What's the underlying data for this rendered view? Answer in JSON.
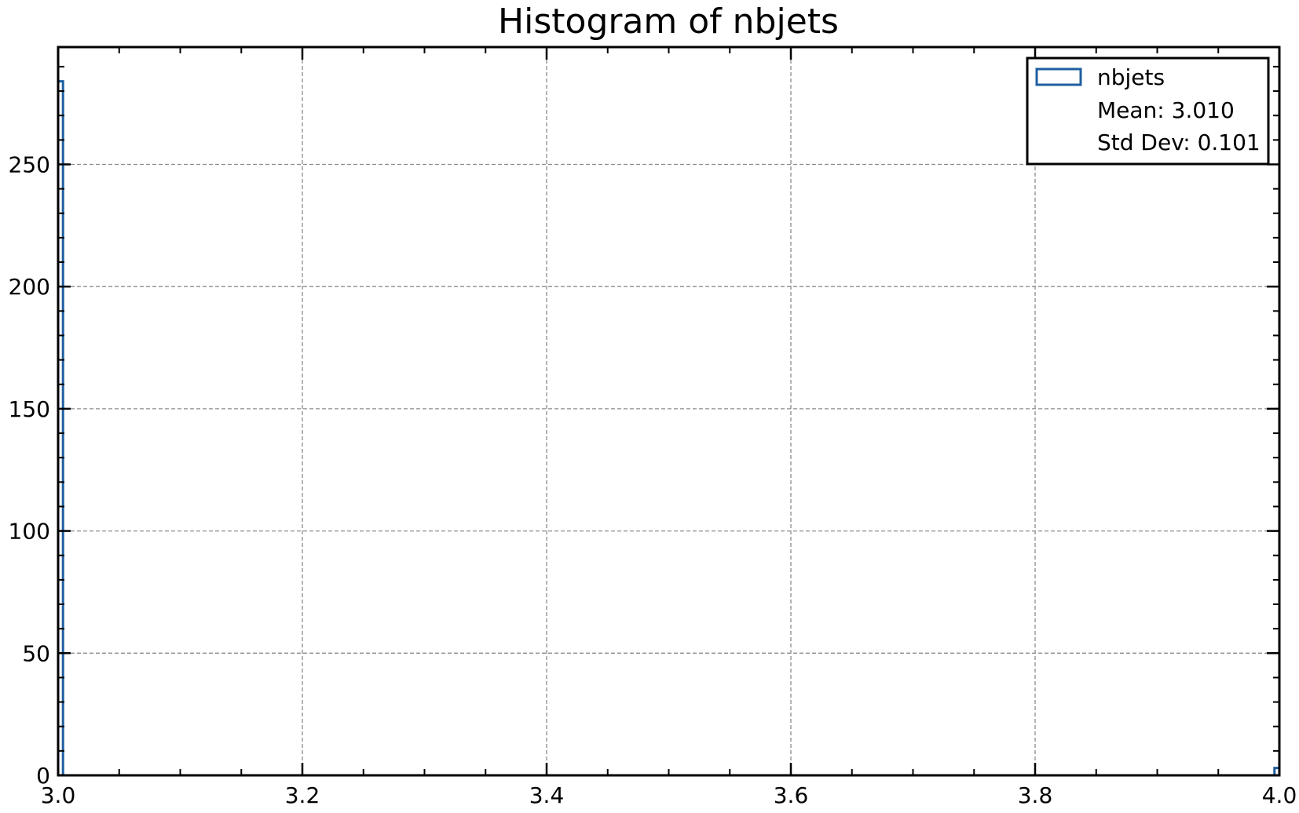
{
  "chart_data": {
    "type": "bar",
    "title": "Histogram of nbjets",
    "xlabel": "",
    "ylabel": "",
    "xlim": [
      3.0,
      4.0
    ],
    "ylim": [
      0,
      298
    ],
    "x_ticks": [
      3.0,
      3.2,
      3.4,
      3.6,
      3.8,
      4.0
    ],
    "x_tick_labels": [
      "3.0",
      "3.2",
      "3.4",
      "3.6",
      "3.8",
      "4.0"
    ],
    "y_ticks": [
      0,
      50,
      100,
      150,
      200,
      250
    ],
    "y_tick_labels": [
      "0",
      "50",
      "100",
      "150",
      "200",
      "250"
    ],
    "grid": true,
    "legend_position": "top-right",
    "series": [
      {
        "name": "nbjets",
        "color": "#1f5fa0",
        "style": "step",
        "bins": [
          {
            "x0": 3.0,
            "x1": 3.004,
            "count": 284
          },
          {
            "x0": 3.996,
            "x1": 4.0,
            "count": 3
          }
        ]
      }
    ],
    "legend": {
      "label": "nbjets",
      "lines": [
        "Mean: 3.010",
        "Std Dev: 0.101"
      ]
    }
  }
}
